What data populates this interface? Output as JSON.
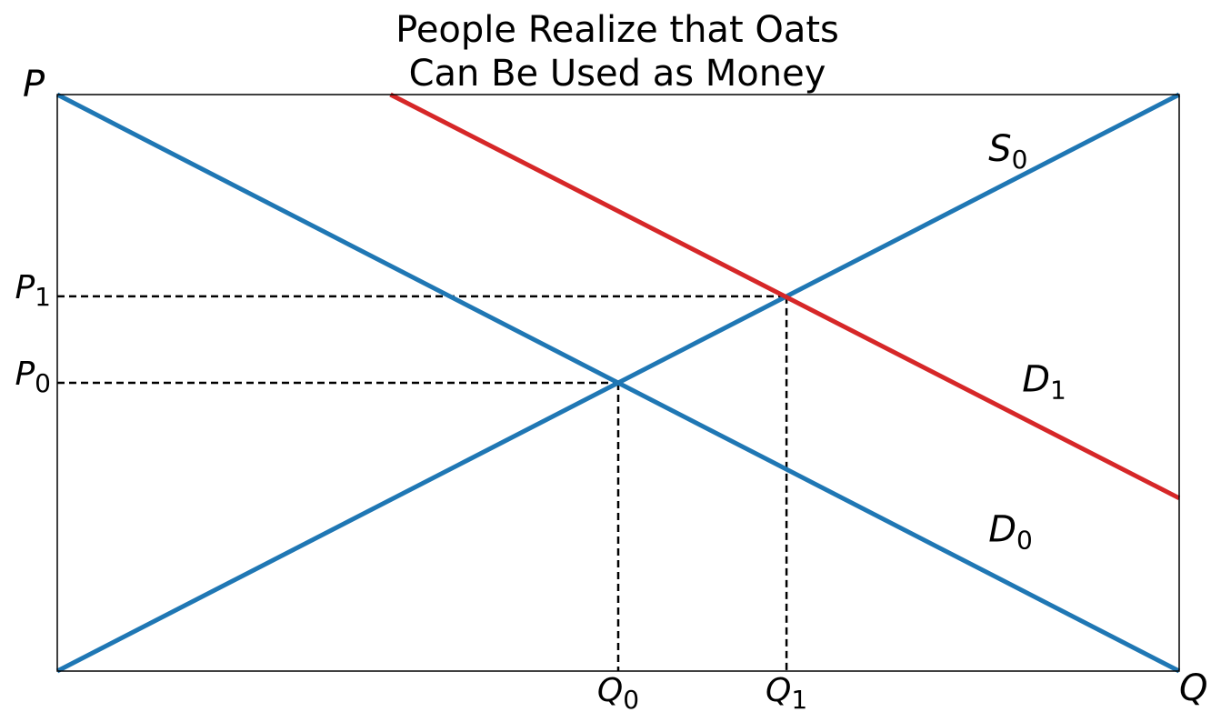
{
  "chart_data": {
    "type": "line",
    "title_lines": [
      "People Realize that Oats",
      "Can Be Used as Money"
    ],
    "xlabel": "Q",
    "ylabel": "P",
    "xlim": [
      0,
      10
    ],
    "ylim": [
      0,
      10
    ],
    "grid": false,
    "legend": "none",
    "series": [
      {
        "name": "S",
        "sub": "0",
        "color": "#1f77b4",
        "x": [
          0,
          10
        ],
        "y": [
          0,
          10
        ]
      },
      {
        "name": "D",
        "sub": "0",
        "color": "#1f77b4",
        "x": [
          0,
          10
        ],
        "y": [
          10,
          0
        ]
      },
      {
        "name": "D",
        "sub": "1",
        "color": "#d62728",
        "x": [
          2.97,
          10
        ],
        "y": [
          10,
          3
        ]
      }
    ],
    "curve_labels": [
      {
        "base": "S",
        "sub": "0",
        "x": 8.3,
        "y": 8.85
      },
      {
        "base": "D",
        "sub": "1",
        "x": 8.6,
        "y": 4.85
      },
      {
        "base": "D",
        "sub": "0",
        "x": 8.3,
        "y": 2.25
      }
    ],
    "equilibria": [
      {
        "x": 5.0,
        "y": 5.0
      },
      {
        "x": 6.5,
        "y": 6.5
      }
    ],
    "xticks": [
      {
        "value": 5.0,
        "base": "Q",
        "sub": "0"
      },
      {
        "value": 6.5,
        "base": "Q",
        "sub": "1"
      }
    ],
    "yticks": [
      {
        "value": 5.0,
        "base": "P",
        "sub": "0"
      },
      {
        "value": 6.5,
        "base": "P",
        "sub": "1"
      }
    ]
  }
}
